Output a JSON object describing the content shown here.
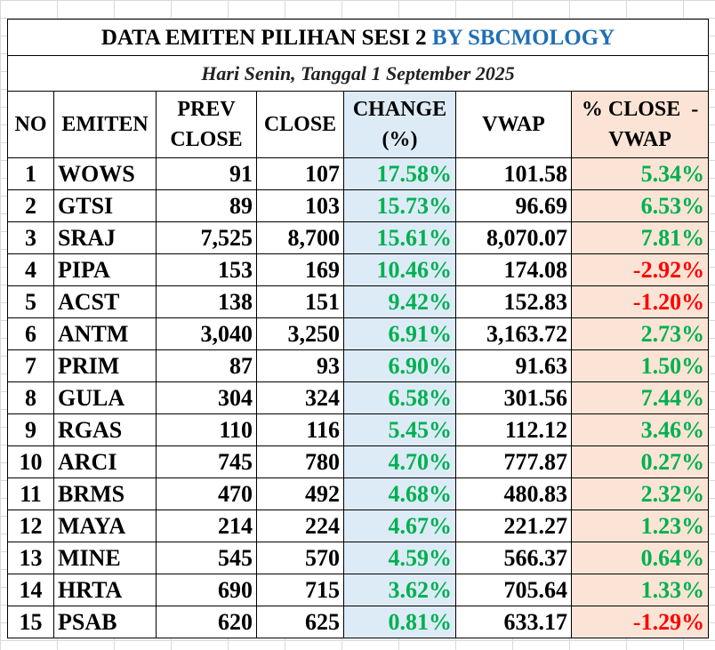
{
  "title": {
    "part1": "DATA EMITEN PILIHAN SESI 2",
    "part2": "BY SBCMOLOGY",
    "accent_color": "#1f6fb5"
  },
  "subtitle": "Hari Senin, Tanggal 1 September 2025",
  "headers": {
    "no": "NO",
    "emiten": "EMITEN",
    "prev_close_1": "PREV",
    "prev_close_2": "CLOSE",
    "close": "CLOSE",
    "change_1": "CHANGE",
    "change_2": "(%)",
    "vwap": "VWAP",
    "pct_1": "% CLOSE  -",
    "pct_2": "VWAP"
  },
  "colors": {
    "positive": "#00b050",
    "negative": "#ff0000",
    "change_bg": "#ddebf7",
    "pct_bg": "#fbe4d5"
  },
  "rows": [
    {
      "no": "1",
      "emiten": "WOWS",
      "prev": "91",
      "close": "107",
      "change": "17.58%",
      "vwap": "101.58",
      "pct": "5.34%",
      "neg": false
    },
    {
      "no": "2",
      "emiten": "GTSI",
      "prev": "89",
      "close": "103",
      "change": "15.73%",
      "vwap": "96.69",
      "pct": "6.53%",
      "neg": false
    },
    {
      "no": "3",
      "emiten": "SRAJ",
      "prev": "7,525",
      "close": "8,700",
      "change": "15.61%",
      "vwap": "8,070.07",
      "pct": "7.81%",
      "neg": false
    },
    {
      "no": "4",
      "emiten": "PIPA",
      "prev": "153",
      "close": "169",
      "change": "10.46%",
      "vwap": "174.08",
      "pct": "-2.92%",
      "neg": true
    },
    {
      "no": "5",
      "emiten": "ACST",
      "prev": "138",
      "close": "151",
      "change": "9.42%",
      "vwap": "152.83",
      "pct": "-1.20%",
      "neg": true
    },
    {
      "no": "6",
      "emiten": "ANTM",
      "prev": "3,040",
      "close": "3,250",
      "change": "6.91%",
      "vwap": "3,163.72",
      "pct": "2.73%",
      "neg": false
    },
    {
      "no": "7",
      "emiten": "PRIM",
      "prev": "87",
      "close": "93",
      "change": "6.90%",
      "vwap": "91.63",
      "pct": "1.50%",
      "neg": false
    },
    {
      "no": "8",
      "emiten": "GULA",
      "prev": "304",
      "close": "324",
      "change": "6.58%",
      "vwap": "301.56",
      "pct": "7.44%",
      "neg": false
    },
    {
      "no": "9",
      "emiten": "RGAS",
      "prev": "110",
      "close": "116",
      "change": "5.45%",
      "vwap": "112.12",
      "pct": "3.46%",
      "neg": false
    },
    {
      "no": "10",
      "emiten": "ARCI",
      "prev": "745",
      "close": "780",
      "change": "4.70%",
      "vwap": "777.87",
      "pct": "0.27%",
      "neg": false
    },
    {
      "no": "11",
      "emiten": "BRMS",
      "prev": "470",
      "close": "492",
      "change": "4.68%",
      "vwap": "480.83",
      "pct": "2.32%",
      "neg": false
    },
    {
      "no": "12",
      "emiten": "MAYA",
      "prev": "214",
      "close": "224",
      "change": "4.67%",
      "vwap": "221.27",
      "pct": "1.23%",
      "neg": false
    },
    {
      "no": "13",
      "emiten": "MINE",
      "prev": "545",
      "close": "570",
      "change": "4.59%",
      "vwap": "566.37",
      "pct": "0.64%",
      "neg": false
    },
    {
      "no": "14",
      "emiten": "HRTA",
      "prev": "690",
      "close": "715",
      "change": "3.62%",
      "vwap": "705.64",
      "pct": "1.33%",
      "neg": false
    },
    {
      "no": "15",
      "emiten": "PSAB",
      "prev": "620",
      "close": "625",
      "change": "0.81%",
      "vwap": "633.17",
      "pct": "-1.29%",
      "neg": true
    }
  ]
}
